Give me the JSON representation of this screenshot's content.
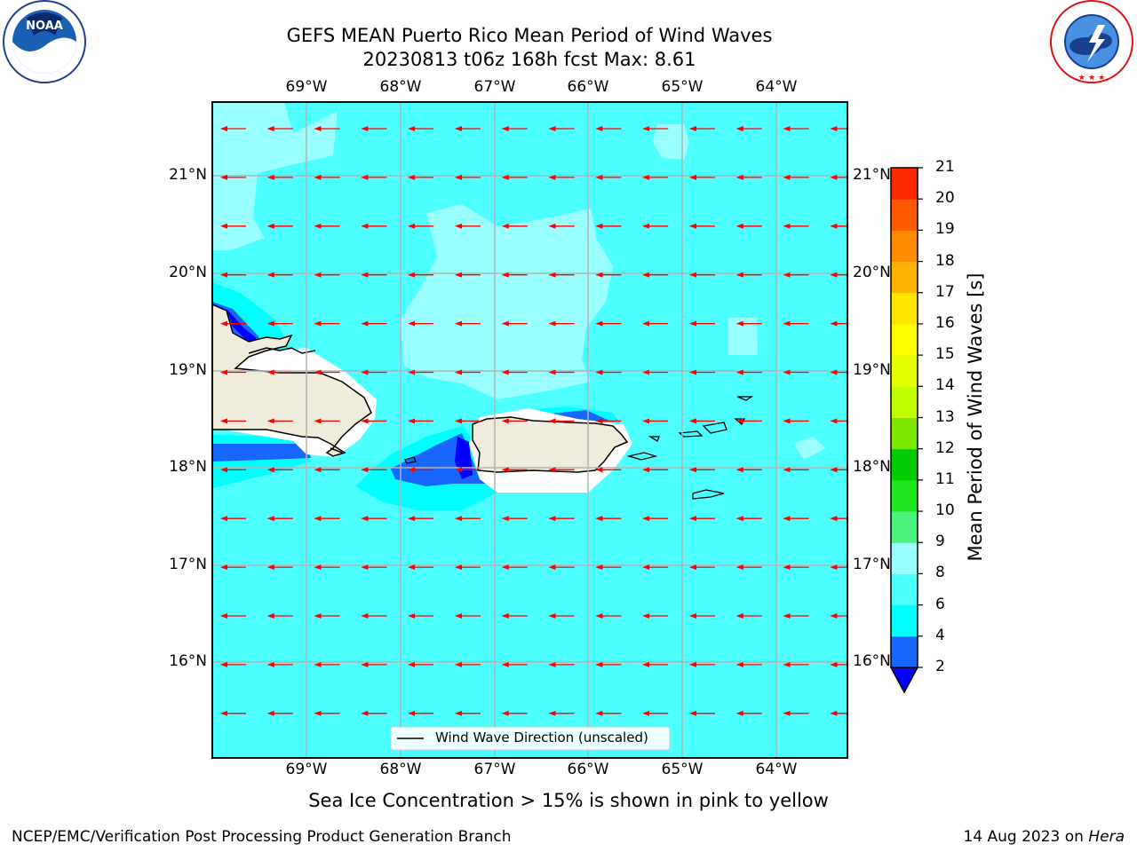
{
  "header": {
    "title_line1": "GEFS MEAN Puerto Rico Mean Period of Wind Waves",
    "title_line2": "20230813 t06z 168h fcst   Max: 8.61"
  },
  "axes": {
    "lon_labels": [
      "69°W",
      "68°W",
      "67°W",
      "66°W",
      "65°W",
      "64°W"
    ],
    "lat_labels": [
      "21°N",
      "20°N",
      "19°N",
      "18°N",
      "17°N",
      "16°N"
    ]
  },
  "legend": {
    "label": "Wind Wave Direction (unscaled)"
  },
  "colorbar": {
    "title": "Mean Period of Wind Waves [s]",
    "ticks": [
      "2",
      "4",
      "6",
      "8",
      "9",
      "10",
      "11",
      "12",
      "13",
      "14",
      "15",
      "16",
      "17",
      "18",
      "19",
      "20",
      "21"
    ],
    "colors": [
      "#1666ff",
      "#00ffff",
      "#4dffff",
      "#99ffff",
      "#4cf27e",
      "#22e622",
      "#00cc00",
      "#7fe600",
      "#bfff00",
      "#e6ff00",
      "#ffff00",
      "#ffe600",
      "#ffb300",
      "#ff8c00",
      "#ff5a00",
      "#ff2a00"
    ],
    "extend_color": "#0000ff"
  },
  "map": {
    "ocean_color": "#4dffff",
    "land_color": "#efecdc",
    "arrow_color": "#ff0000"
  },
  "notes": {
    "sea_ice": "Sea Ice Concentration > 15% is shown in pink to yellow",
    "org": "NCEP/EMC/Verification Post Processing Product Generation Branch",
    "date": "14 Aug 2023 on",
    "host": "Hera"
  },
  "logos": {
    "left": "NOAA",
    "right": "NATIONAL WEATHER SERVICE"
  }
}
